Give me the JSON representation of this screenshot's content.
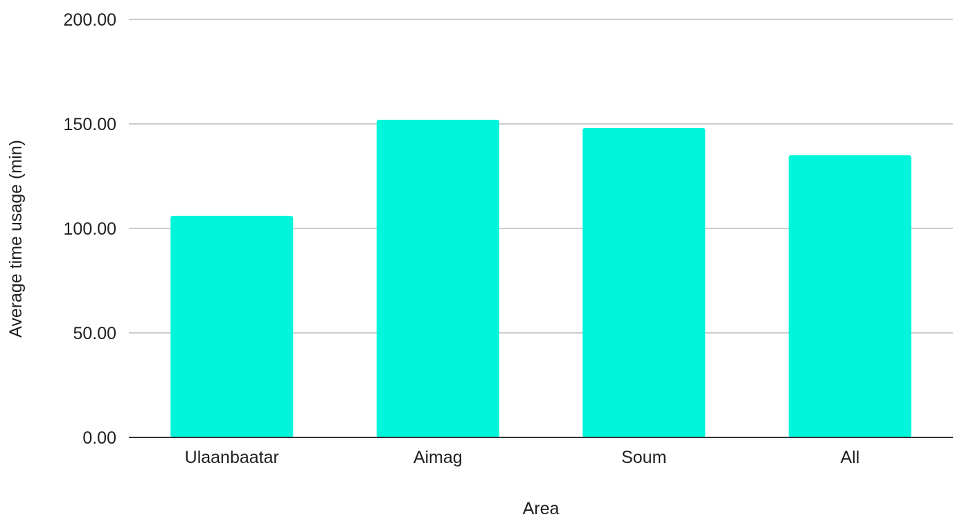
{
  "chart_data": {
    "type": "bar",
    "title": "",
    "xlabel": "Area",
    "ylabel": "Average time usage (min)",
    "categories": [
      "Ulaanbaatar",
      "Aimag",
      "Soum",
      "All"
    ],
    "values": [
      106,
      152,
      148,
      135
    ],
    "ylim": [
      0,
      200
    ],
    "yticks": [
      "0.00",
      "50.00",
      "100.00",
      "150.00",
      "200.00"
    ],
    "grid": true,
    "legend": "none",
    "bar_color": "#00f5db"
  }
}
